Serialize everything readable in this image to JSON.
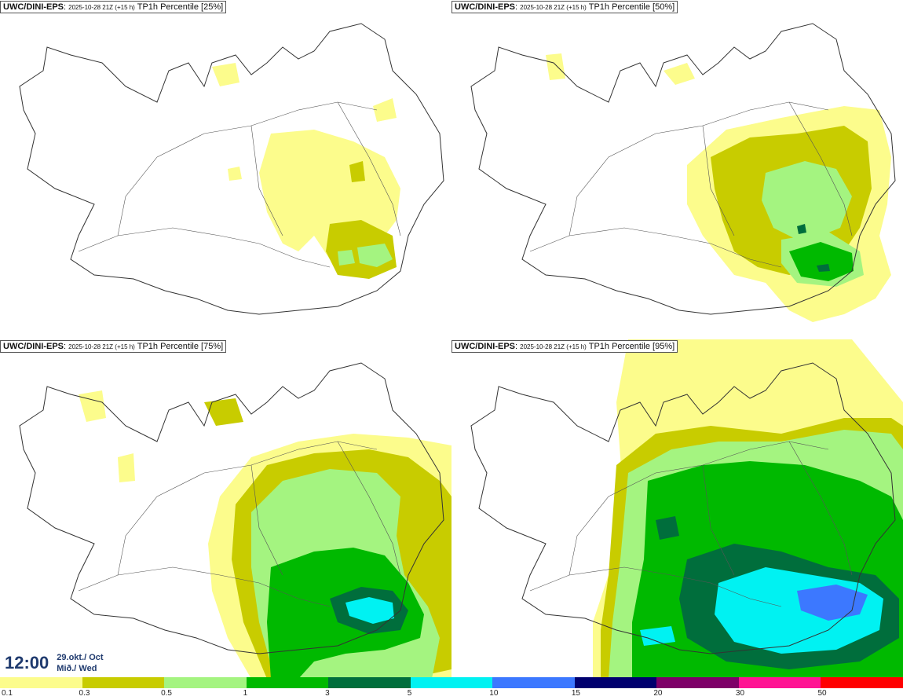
{
  "panels": [
    {
      "model": "UWC/DINI-EPS",
      "run": "2025-10-28 21Z (+15 h)",
      "label": "TP1h Percentile [25%]"
    },
    {
      "model": "UWC/DINI-EPS",
      "run": "2025-10-28 21Z (+15 h)",
      "label": "TP1h Percentile [50%]"
    },
    {
      "model": "UWC/DINI-EPS",
      "run": "2025-10-28 21Z (+15 h)",
      "label": "TP1h Percentile [75%]"
    },
    {
      "model": "UWC/DINI-EPS",
      "run": "2025-10-28 21Z (+15 h)",
      "label": "TP1h Percentile [95%]"
    }
  ],
  "valid_time": {
    "time": "12:00",
    "date_line1": "29.okt./ Oct",
    "date_line2": "Mið./ Wed"
  },
  "legend": {
    "colors": [
      "#fcfc8c",
      "#c8cc00",
      "#a4f480",
      "#00b900",
      "#006e3c",
      "#00f2f2",
      "#3c78ff",
      "#00006e",
      "#7e0068",
      "#ff1493",
      "#ff0000"
    ],
    "ticks": [
      "0.1",
      "0.3",
      "0.5",
      "1",
      "3",
      "5",
      "10",
      "15",
      "20",
      "30",
      "50"
    ]
  },
  "precip_colors": {
    "c01": "#fcfc8c",
    "c03": "#c8cc00",
    "c05": "#a4f480",
    "c1": "#00b900",
    "c3": "#006e3c",
    "c5": "#00f2f2",
    "c10": "#3c78ff"
  }
}
